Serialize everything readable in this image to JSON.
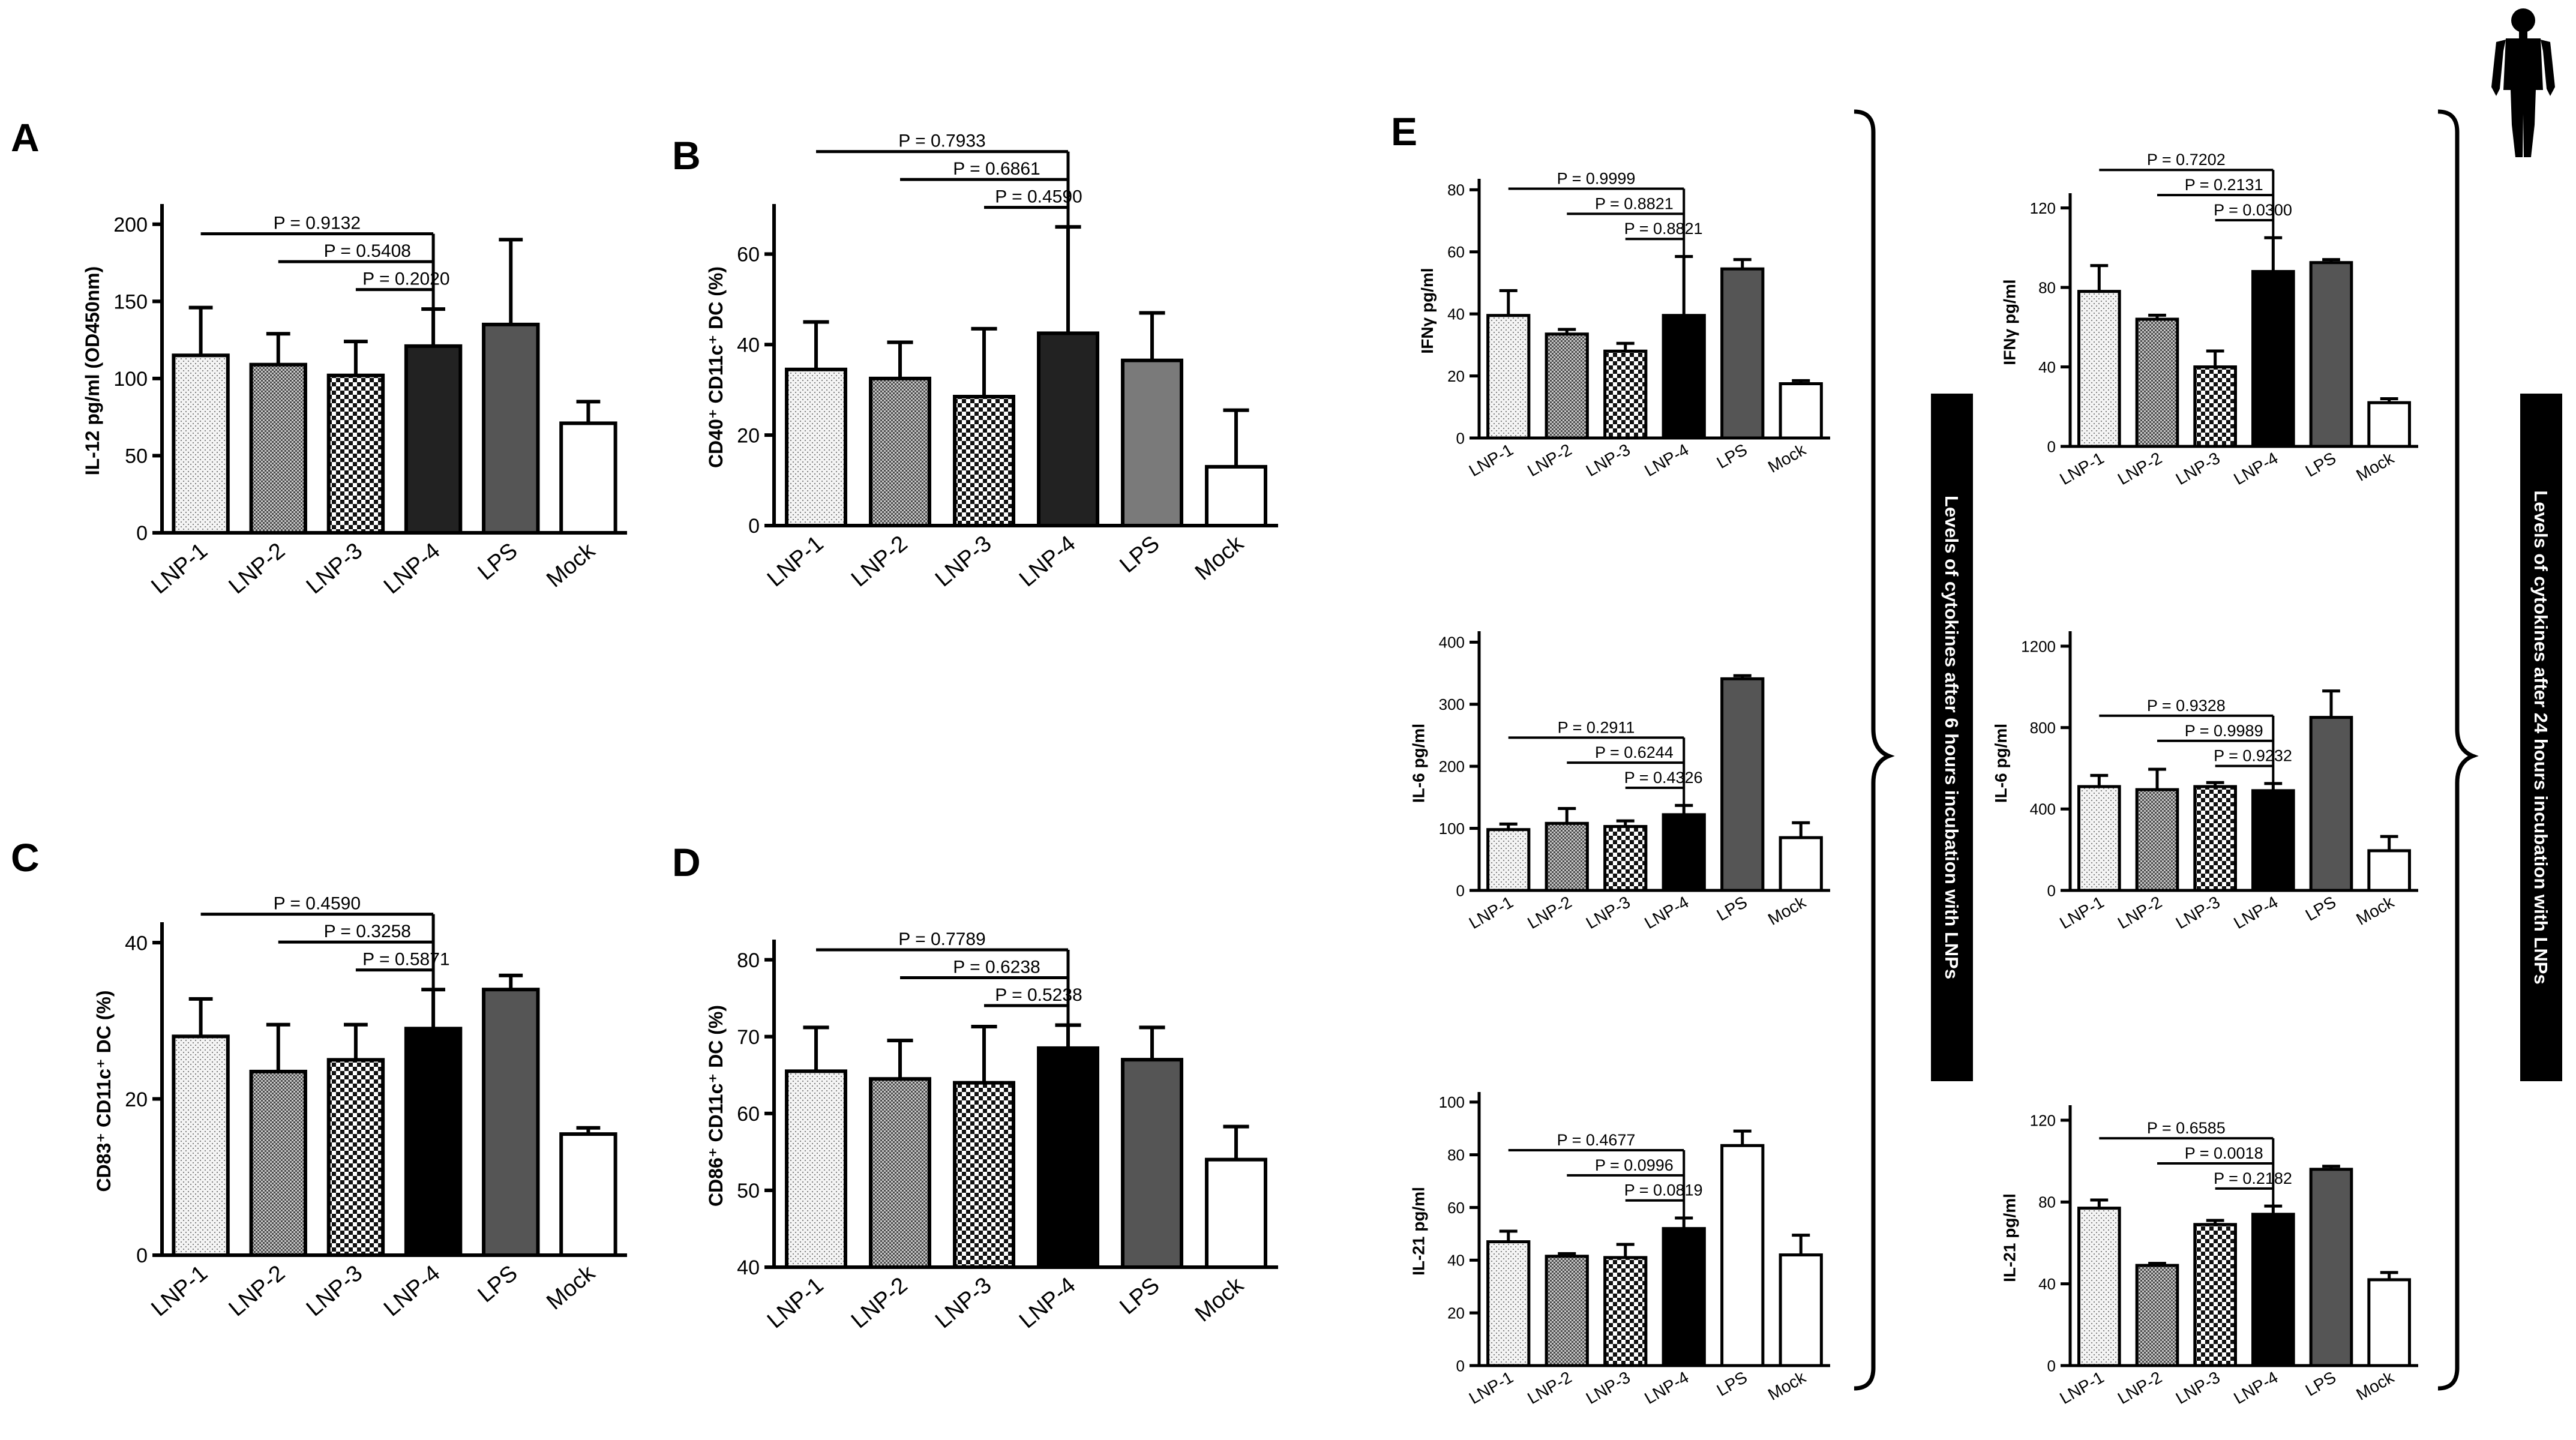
{
  "figure": {
    "panels": {
      "A": "A",
      "B": "B",
      "C": "C",
      "D": "D",
      "E": "E"
    },
    "side_labels": {
      "six_hours": "Levels of cytokines after 6 hours incubation with LNPs",
      "twentyfour_hours": "Levels of cytokines after 24 hours incubation with LNPs"
    },
    "icon": "human-figure-icon"
  },
  "colors": {
    "LNP-1": "#ececec",
    "LNP-2": "#8a8a8a",
    "LNP-3": "#ffffff",
    "LNP-4_dark": "#222222",
    "LNP-4": "#000000",
    "LPS_light": "#7a7a7a",
    "LPS": "#555555",
    "Mock": "#ffffff"
  },
  "chart_data": [
    {
      "id": "A",
      "type": "bar",
      "categories": [
        "LNP-1",
        "LNP-2",
        "LNP-3",
        "LNP-4",
        "LPS",
        "Mock"
      ],
      "values": [
        115,
        109,
        102,
        121,
        135,
        71
      ],
      "errors": [
        31,
        20,
        22,
        24,
        55,
        14
      ],
      "title": "",
      "xlabel": "",
      "ylabel": "IL-12 pg/ml (OD450nm)",
      "ylim": [
        0,
        210
      ],
      "yticks": [
        0,
        50,
        100,
        150,
        200
      ],
      "comparisons": [
        {
          "label": "P = 0.9132",
          "from": "LNP-1",
          "to": "LNP-4"
        },
        {
          "label": "P = 0.5408",
          "from": "LNP-2",
          "to": "LNP-4"
        },
        {
          "label": "P = 0.2020",
          "from": "LNP-3",
          "to": "LNP-4"
        }
      ]
    },
    {
      "id": "B",
      "type": "bar",
      "categories": [
        "LNP-1",
        "LNP-2",
        "LNP-3",
        "LNP-4",
        "LPS",
        "Mock"
      ],
      "values": [
        34.5,
        32.5,
        28.5,
        42.5,
        36.5,
        13
      ],
      "errors": [
        10.5,
        8,
        15,
        23.5,
        10.5,
        12.5
      ],
      "title": "",
      "xlabel": "",
      "ylabel": "CD40⁺ CD11c⁺ DC (%)",
      "ylim": [
        0,
        70
      ],
      "yticks": [
        0,
        20,
        40,
        60
      ],
      "comparisons": [
        {
          "label": "P = 0.7933",
          "from": "LNP-1",
          "to": "LNP-4"
        },
        {
          "label": "P = 0.6861",
          "from": "LNP-2",
          "to": "LNP-4"
        },
        {
          "label": "P = 0.4590",
          "from": "LNP-3",
          "to": "LNP-4"
        }
      ]
    },
    {
      "id": "C",
      "type": "bar",
      "categories": [
        "LNP-1",
        "LNP-2",
        "LNP-3",
        "LNP-4",
        "LPS",
        "Mock"
      ],
      "values": [
        28,
        23.5,
        25,
        29,
        34,
        15.5
      ],
      "errors": [
        4.8,
        6,
        4.5,
        5,
        1.8,
        0.8
      ],
      "title": "",
      "xlabel": "",
      "ylabel": "CD83⁺ CD11c⁺ DC (%)",
      "ylim": [
        0,
        42
      ],
      "yticks": [
        0,
        20,
        40
      ],
      "comparisons": [
        {
          "label": "P = 0.4590",
          "from": "LNP-1",
          "to": "LNP-4"
        },
        {
          "label": "P = 0.3258",
          "from": "LNP-2",
          "to": "LNP-4"
        },
        {
          "label": "P = 0.5871",
          "from": "LNP-3",
          "to": "LNP-4"
        }
      ]
    },
    {
      "id": "D",
      "type": "bar",
      "categories": [
        "LNP-1",
        "LNP-2",
        "LNP-3",
        "LNP-4",
        "LPS",
        "Mock"
      ],
      "values": [
        65.5,
        64.5,
        64,
        68.5,
        67,
        54
      ],
      "errors": [
        5.7,
        5,
        7.3,
        3,
        4.2,
        4.3
      ],
      "title": "",
      "xlabel": "",
      "ylabel": "CD86⁺ CD11c⁺ DC (%)",
      "ylim": [
        40,
        82
      ],
      "yticks": [
        40,
        50,
        60,
        70,
        80
      ],
      "comparisons": [
        {
          "label": "P = 0.7789",
          "from": "LNP-1",
          "to": "LNP-4"
        },
        {
          "label": "P = 0.6238",
          "from": "LNP-2",
          "to": "LNP-4"
        },
        {
          "label": "P = 0.5238",
          "from": "LNP-3",
          "to": "LNP-4"
        }
      ]
    },
    {
      "id": "E-IFNg-6h",
      "type": "bar",
      "categories": [
        "LNP-1",
        "LNP-2",
        "LNP-3",
        "LNP-4",
        "LPS",
        "Mock"
      ],
      "values": [
        39.5,
        33.5,
        28,
        39.5,
        54.5,
        17.5
      ],
      "errors": [
        8,
        1.5,
        2.5,
        19,
        3,
        1
      ],
      "title": "",
      "xlabel": "",
      "ylabel": "IFNγ pg/ml",
      "ylim": [
        0,
        82
      ],
      "yticks": [
        0,
        20,
        40,
        60,
        80
      ],
      "comparisons": [
        {
          "label": "P = 0.9999",
          "from": "LNP-1",
          "to": "LNP-4"
        },
        {
          "label": "P = 0.8821",
          "from": "LNP-2",
          "to": "LNP-4"
        },
        {
          "label": "P = 0.8821",
          "from": "LNP-3",
          "to": "LNP-4"
        }
      ]
    },
    {
      "id": "E-IL6-6h",
      "type": "bar",
      "categories": [
        "LNP-1",
        "LNP-2",
        "LNP-3",
        "LNP-4",
        "LPS",
        "Mock"
      ],
      "values": [
        98,
        108,
        103,
        122,
        341,
        85
      ],
      "errors": [
        9,
        24,
        9,
        15,
        5,
        24
      ],
      "title": "",
      "xlabel": "",
      "ylabel": "IL-6 pg/ml",
      "ylim": [
        0,
        410
      ],
      "yticks": [
        0,
        100,
        200,
        300,
        400
      ],
      "comparisons": [
        {
          "label": "P = 0.2911",
          "from": "LNP-1",
          "to": "LNP-4"
        },
        {
          "label": "P = 0.6244",
          "from": "LNP-2",
          "to": "LNP-4"
        },
        {
          "label": "P = 0.4326",
          "from": "LNP-3",
          "to": "LNP-4"
        }
      ]
    },
    {
      "id": "E-IL21-6h",
      "type": "bar",
      "categories": [
        "LNP-1",
        "LNP-2",
        "LNP-3",
        "LNP-4",
        "LPS",
        "Mock"
      ],
      "values": [
        47,
        41.5,
        41,
        52,
        83.5,
        42
      ],
      "errors": [
        4,
        1,
        5,
        4,
        5.5,
        7.5
      ],
      "title": "",
      "xlabel": "",
      "ylabel": "IL-21 pg/ml",
      "ylim": [
        0,
        102
      ],
      "yticks": [
        0,
        20,
        40,
        60,
        80,
        100
      ],
      "comparisons": [
        {
          "label": "P = 0.4677",
          "from": "LNP-1",
          "to": "LNP-4"
        },
        {
          "label": "P = 0.0996",
          "from": "LNP-2",
          "to": "LNP-4"
        },
        {
          "label": "P = 0.0819",
          "from": "LNP-3",
          "to": "LNP-4"
        }
      ]
    },
    {
      "id": "E-IFNg-24h",
      "type": "bar",
      "categories": [
        "LNP-1",
        "LNP-2",
        "LNP-3",
        "LNP-4",
        "LPS",
        "Mock"
      ],
      "values": [
        78,
        64,
        40,
        88,
        92.5,
        22
      ],
      "errors": [
        13,
        2,
        8,
        17,
        1.5,
        2
      ],
      "title": "",
      "xlabel": "",
      "ylabel": "IFNγ pg/ml",
      "ylim": [
        0,
        125
      ],
      "yticks": [
        0,
        40,
        80,
        120
      ],
      "comparisons": [
        {
          "label": "P = 0.7202",
          "from": "LNP-1",
          "to": "LNP-4"
        },
        {
          "label": "P = 0.2131",
          "from": "LNP-2",
          "to": "LNP-4"
        },
        {
          "label": "P = 0.0300",
          "from": "LNP-3",
          "to": "LNP-4"
        }
      ]
    },
    {
      "id": "E-IL6-24h",
      "type": "bar",
      "categories": [
        "LNP-1",
        "LNP-2",
        "LNP-3",
        "LNP-4",
        "LPS",
        "Mock"
      ],
      "values": [
        510,
        495,
        510,
        490,
        850,
        195
      ],
      "errors": [
        55,
        100,
        20,
        35,
        130,
        70
      ],
      "title": "",
      "xlabel": "",
      "ylabel": "IL-6 pg/ml",
      "ylim": [
        0,
        1250
      ],
      "yticks": [
        0,
        400,
        800,
        1200
      ],
      "comparisons": [
        {
          "label": "P = 0.9328",
          "from": "LNP-1",
          "to": "LNP-4"
        },
        {
          "label": "P = 0.9989",
          "from": "LNP-2",
          "to": "LNP-4"
        },
        {
          "label": "P = 0.9232",
          "from": "LNP-3",
          "to": "LNP-4"
        }
      ]
    },
    {
      "id": "E-IL21-24h",
      "type": "bar",
      "categories": [
        "LNP-1",
        "LNP-2",
        "LNP-3",
        "LNP-4",
        "LPS",
        "Mock"
      ],
      "values": [
        77,
        49,
        69,
        74,
        96,
        42
      ],
      "errors": [
        4,
        1,
        2,
        4,
        1.5,
        3.5
      ],
      "title": "",
      "xlabel": "",
      "ylabel": "IL-21 pg/ml",
      "ylim": [
        0,
        125
      ],
      "yticks": [
        0,
        40,
        80,
        120
      ],
      "comparisons": [
        {
          "label": "P = 0.6585",
          "from": "LNP-1",
          "to": "LNP-4"
        },
        {
          "label": "P = 0.0018",
          "from": "LNP-2",
          "to": "LNP-4"
        },
        {
          "label": "P = 0.2182",
          "from": "LNP-3",
          "to": "LNP-4"
        }
      ]
    }
  ]
}
